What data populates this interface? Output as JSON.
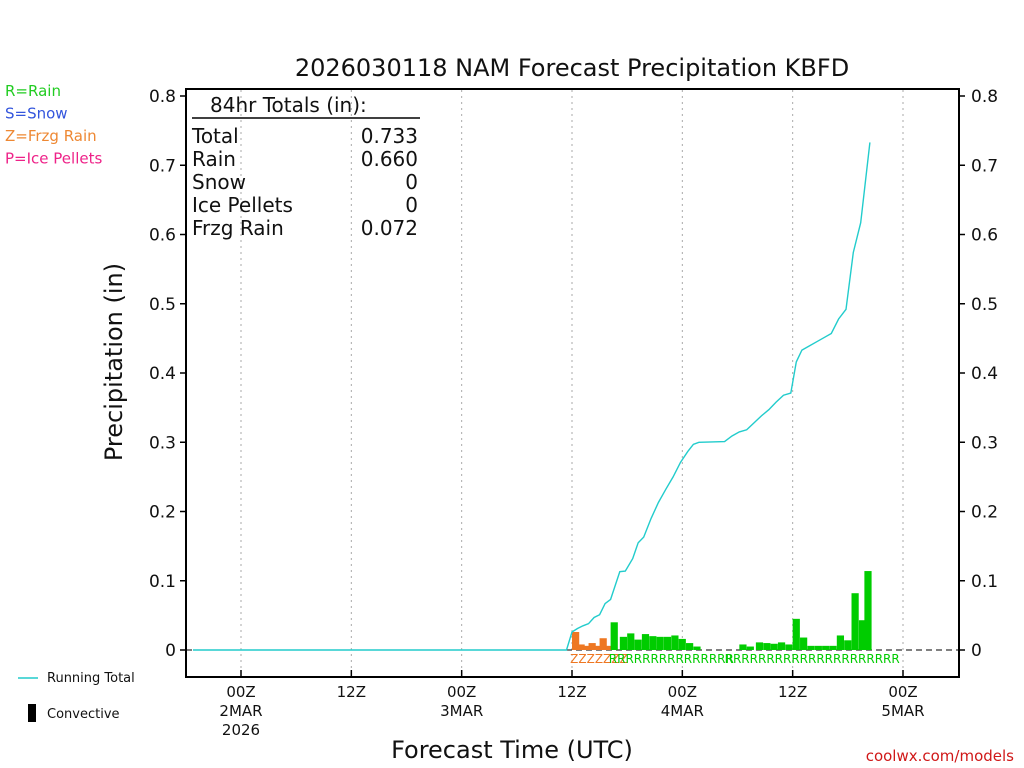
{
  "chart_data": {
    "type": "bar",
    "title": "2026030118 NAM Forecast Precipitation KBFD",
    "xlabel": "Forecast Time (UTC)",
    "ylabel": "Precipitation (in)",
    "ylim": [
      0,
      0.8
    ],
    "yticks": [
      "0.8",
      "0.7",
      "0.6",
      "0.5",
      "0.4",
      "0.3",
      "0.2",
      "0.1",
      "0"
    ],
    "ytick_values": [
      0.8,
      0.7,
      0.6,
      0.5,
      0.4,
      0.3,
      0.2,
      0.1,
      0
    ],
    "forecast_hours": 84,
    "x_ticks": [
      {
        "hour": 6,
        "lines": [
          "00Z",
          "2MAR",
          "2026"
        ]
      },
      {
        "hour": 18,
        "lines": [
          "12Z"
        ]
      },
      {
        "hour": 30,
        "lines": [
          "00Z",
          "3MAR"
        ]
      },
      {
        "hour": 42,
        "lines": [
          "12Z"
        ]
      },
      {
        "hour": 54,
        "lines": [
          "00Z",
          "4MAR"
        ]
      },
      {
        "hour": 66,
        "lines": [
          "12Z"
        ]
      },
      {
        "hour": 78,
        "lines": [
          "00Z",
          "5MAR"
        ]
      }
    ],
    "legend": [
      {
        "text": "R=Rain",
        "color": "#22cc22"
      },
      {
        "text": "S=Snow",
        "color": "#3355dd"
      },
      {
        "text": "Z=Frzg Rain",
        "color": "#ee8833"
      },
      {
        "text": "P=Ice Pellets",
        "color": "#ee2288"
      }
    ],
    "series_legend": {
      "running_total": "Running Total",
      "convective": "Convective"
    },
    "totals": {
      "header": "84hr Totals (in):",
      "rows": [
        {
          "label": "Total",
          "value": "0.733"
        },
        {
          "label": "Rain",
          "value": "0.660"
        },
        {
          "label": "Snow",
          "value": "0"
        },
        {
          "label": "Ice Pellets",
          "value": "0"
        },
        {
          "label": "Frzg Rain",
          "value": "0.072"
        }
      ]
    },
    "colors": {
      "rain": "#00cc00",
      "frzg_rain": "#ee7722",
      "running_total": "#22cccc",
      "convective": "#000000"
    },
    "bars": [
      {
        "hour": 42.0,
        "value": 0.026,
        "ptype": "Z"
      },
      {
        "hour": 42.6,
        "value": 0.008,
        "ptype": "Z"
      },
      {
        "hour": 43.2,
        "value": 0.006,
        "ptype": "Z"
      },
      {
        "hour": 43.8,
        "value": 0.01,
        "ptype": "Z"
      },
      {
        "hour": 44.4,
        "value": 0.006,
        "ptype": "Z"
      },
      {
        "hour": 45.0,
        "value": 0.017,
        "ptype": "Z"
      },
      {
        "hour": 45.6,
        "value": 0.006,
        "ptype": "Z"
      },
      {
        "hour": 46.2,
        "value": 0.04,
        "ptype": "R"
      },
      {
        "hour": 47.2,
        "value": 0.019,
        "ptype": "R"
      },
      {
        "hour": 48.0,
        "value": 0.024,
        "ptype": "R"
      },
      {
        "hour": 48.8,
        "value": 0.015,
        "ptype": "R"
      },
      {
        "hour": 49.6,
        "value": 0.023,
        "ptype": "R"
      },
      {
        "hour": 50.4,
        "value": 0.02,
        "ptype": "R"
      },
      {
        "hour": 51.2,
        "value": 0.019,
        "ptype": "R"
      },
      {
        "hour": 52.0,
        "value": 0.019,
        "ptype": "R"
      },
      {
        "hour": 52.8,
        "value": 0.021,
        "ptype": "R"
      },
      {
        "hour": 53.6,
        "value": 0.016,
        "ptype": "R"
      },
      {
        "hour": 54.4,
        "value": 0.01,
        "ptype": "R"
      },
      {
        "hour": 55.2,
        "value": 0.005,
        "ptype": "R"
      },
      {
        "hour": 60.2,
        "value": 0.008,
        "ptype": "R"
      },
      {
        "hour": 61.0,
        "value": 0.005,
        "ptype": "R"
      },
      {
        "hour": 62.0,
        "value": 0.011,
        "ptype": "R"
      },
      {
        "hour": 62.8,
        "value": 0.01,
        "ptype": "R"
      },
      {
        "hour": 63.6,
        "value": 0.009,
        "ptype": "R"
      },
      {
        "hour": 64.4,
        "value": 0.011,
        "ptype": "R"
      },
      {
        "hour": 65.2,
        "value": 0.008,
        "ptype": "R"
      },
      {
        "hour": 66.0,
        "value": 0.045,
        "ptype": "R"
      },
      {
        "hour": 66.8,
        "value": 0.018,
        "ptype": "R"
      },
      {
        "hour": 67.6,
        "value": 0.006,
        "ptype": "R"
      },
      {
        "hour": 68.4,
        "value": 0.006,
        "ptype": "R"
      },
      {
        "hour": 69.2,
        "value": 0.006,
        "ptype": "R"
      },
      {
        "hour": 70.0,
        "value": 0.006,
        "ptype": "R"
      },
      {
        "hour": 70.8,
        "value": 0.021,
        "ptype": "R"
      },
      {
        "hour": 71.6,
        "value": 0.014,
        "ptype": "R"
      },
      {
        "hour": 72.4,
        "value": 0.082,
        "ptype": "R"
      },
      {
        "hour": 73.2,
        "value": 0.043,
        "ptype": "R"
      },
      {
        "hour": 73.8,
        "value": 0.114,
        "ptype": "R"
      }
    ],
    "running_total": [
      {
        "hour": 0,
        "value": 0
      },
      {
        "hour": 41.4,
        "value": 0
      },
      {
        "hour": 42,
        "value": 0.026
      },
      {
        "hour": 42.6,
        "value": 0.031
      },
      {
        "hour": 43.2,
        "value": 0.035
      },
      {
        "hour": 43.8,
        "value": 0.038
      },
      {
        "hour": 44.4,
        "value": 0.047
      },
      {
        "hour": 45.0,
        "value": 0.051
      },
      {
        "hour": 45.6,
        "value": 0.067
      },
      {
        "hour": 46.2,
        "value": 0.073
      },
      {
        "hour": 47.2,
        "value": 0.113
      },
      {
        "hour": 47.8,
        "value": 0.114
      },
      {
        "hour": 48.6,
        "value": 0.132
      },
      {
        "hour": 49.2,
        "value": 0.155
      },
      {
        "hour": 49.8,
        "value": 0.163
      },
      {
        "hour": 50.6,
        "value": 0.19
      },
      {
        "hour": 51.4,
        "value": 0.213
      },
      {
        "hour": 52.2,
        "value": 0.232
      },
      {
        "hour": 53.0,
        "value": 0.25
      },
      {
        "hour": 53.8,
        "value": 0.271
      },
      {
        "hour": 54.6,
        "value": 0.287
      },
      {
        "hour": 55.2,
        "value": 0.297
      },
      {
        "hour": 55.8,
        "value": 0.3
      },
      {
        "hour": 58.6,
        "value": 0.301
      },
      {
        "hour": 59.4,
        "value": 0.309
      },
      {
        "hour": 60.2,
        "value": 0.315
      },
      {
        "hour": 61.0,
        "value": 0.318
      },
      {
        "hour": 61.8,
        "value": 0.328
      },
      {
        "hour": 62.6,
        "value": 0.338
      },
      {
        "hour": 63.4,
        "value": 0.347
      },
      {
        "hour": 64.2,
        "value": 0.358
      },
      {
        "hour": 65.0,
        "value": 0.368
      },
      {
        "hour": 65.8,
        "value": 0.371
      },
      {
        "hour": 66.4,
        "value": 0.416
      },
      {
        "hour": 67.0,
        "value": 0.433
      },
      {
        "hour": 67.8,
        "value": 0.439
      },
      {
        "hour": 68.6,
        "value": 0.445
      },
      {
        "hour": 69.4,
        "value": 0.451
      },
      {
        "hour": 70.2,
        "value": 0.457
      },
      {
        "hour": 71.0,
        "value": 0.478
      },
      {
        "hour": 71.8,
        "value": 0.492
      },
      {
        "hour": 72.6,
        "value": 0.574
      },
      {
        "hour": 73.4,
        "value": 0.617
      },
      {
        "hour": 74.4,
        "value": 0.733
      }
    ],
    "ptype_strips": [
      {
        "text": "ZZZZZZZ",
        "ptype": "Z",
        "start_hour": 41.8
      },
      {
        "text": "RRRRRRRRRRRRRRR",
        "ptype": "R",
        "start_hour": 46.0
      },
      {
        "text": "RRRRRRRRRRRRRRRRRRRRR",
        "ptype": "R",
        "start_hour": 58.6
      }
    ]
  },
  "credit": "coolwx.com/models"
}
